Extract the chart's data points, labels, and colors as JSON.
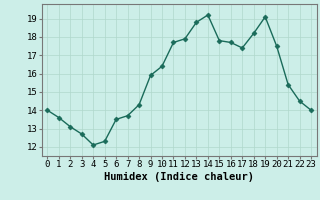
{
  "x": [
    0,
    1,
    2,
    3,
    4,
    5,
    6,
    7,
    8,
    9,
    10,
    11,
    12,
    13,
    14,
    15,
    16,
    17,
    18,
    19,
    20,
    21,
    22,
    23
  ],
  "y": [
    14.0,
    13.6,
    13.1,
    12.7,
    12.1,
    12.3,
    13.5,
    13.7,
    14.3,
    15.9,
    16.4,
    17.7,
    17.9,
    18.8,
    19.2,
    17.8,
    17.7,
    17.4,
    18.2,
    19.1,
    17.5,
    15.4,
    14.5,
    14.0
  ],
  "line_color": "#1a6b5a",
  "marker": "D",
  "marker_size": 2.5,
  "background_color": "#cceee8",
  "grid_color": "#b0d8cc",
  "xlabel": "Humidex (Indice chaleur)",
  "ylim": [
    11.5,
    19.8
  ],
  "xlim": [
    -0.5,
    23.5
  ],
  "yticks": [
    12,
    13,
    14,
    15,
    16,
    17,
    18,
    19
  ],
  "xticks": [
    0,
    1,
    2,
    3,
    4,
    5,
    6,
    7,
    8,
    9,
    10,
    11,
    12,
    13,
    14,
    15,
    16,
    17,
    18,
    19,
    20,
    21,
    22,
    23
  ],
  "tick_fontsize": 6.5,
  "label_fontsize": 7.5
}
